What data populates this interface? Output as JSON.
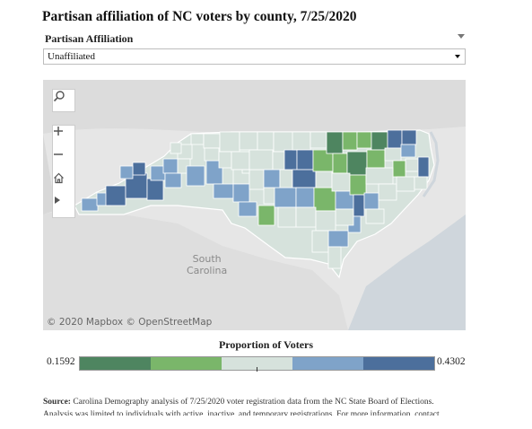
{
  "title": "Partisan affiliation of NC voters by county, 7/25/2020",
  "filter": {
    "label": "Partisan Affiliation",
    "selected": "Unaffiliated"
  },
  "map": {
    "controls": [
      "search-icon",
      "zoom-in-icon",
      "zoom-out-icon",
      "home-icon",
      "play-icon"
    ],
    "region_label_line1": "South",
    "region_label_line2": "Carolina",
    "attribution": "© 2020 Mapbox  © OpenStreetMap"
  },
  "legend": {
    "title": "Proportion of Voters",
    "min": "0.1592",
    "max": "0.4302",
    "colors": [
      "#4e8560",
      "#7ab66a",
      "#d6e2dc",
      "#7fa3c9",
      "#4c6f9c"
    ]
  },
  "source": {
    "label": "Source:",
    "text": "Carolina Demography analysis of 7/25/2020 voter registration data from the NC State Board of Elections. Analysis was limited to individuals with active, inactive, and temporary registrations. For more information, contact demography@unc.edu"
  }
}
